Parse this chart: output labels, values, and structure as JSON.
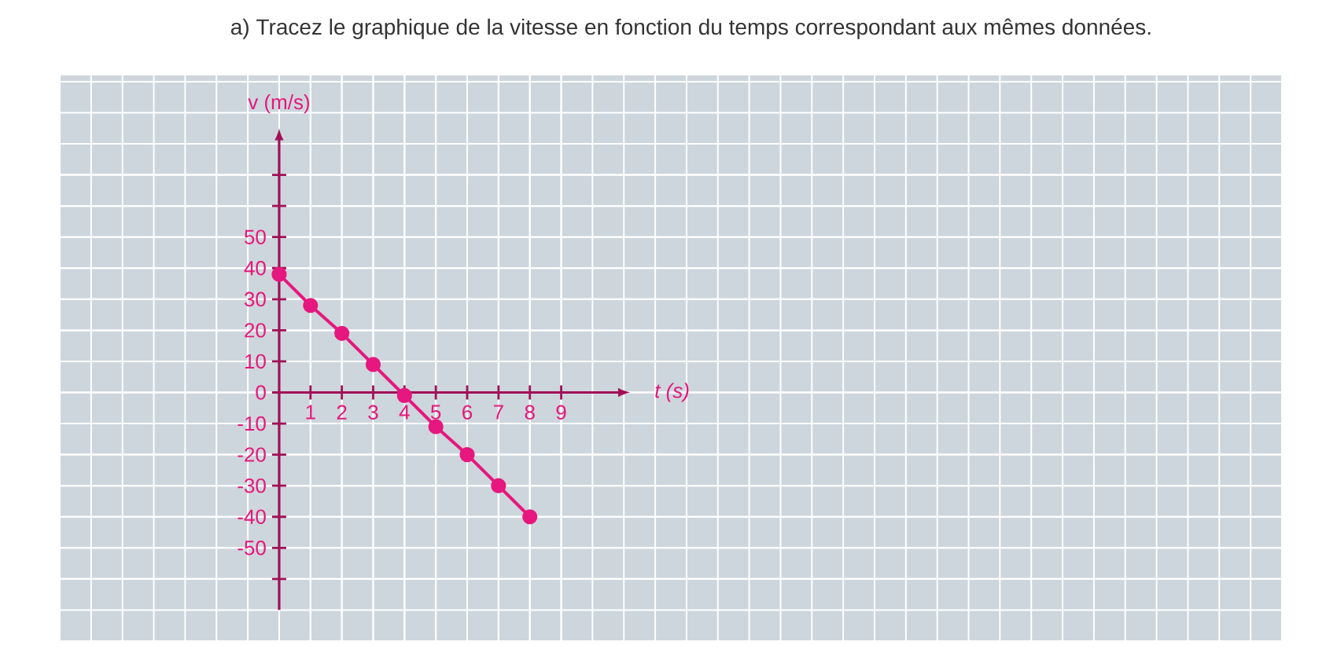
{
  "chart_data": {
    "type": "line",
    "title": "a) Tracez le graphique de la vitesse en fonction du temps correspondant aux mêmes données.",
    "xlabel": "t (s)",
    "ylabel": "v (m/s)",
    "x": [
      0,
      1,
      2,
      3,
      4,
      5,
      6,
      7,
      8
    ],
    "series": [
      {
        "color": "#e6177e",
        "values": [
          38,
          28,
          19,
          9,
          -1,
          -11,
          -20,
          -30,
          -40
        ]
      }
    ],
    "xlim": [
      -7,
      32
    ],
    "ylim": [
      -80,
      102
    ],
    "xticks": [
      1,
      2,
      3,
      4,
      5,
      6,
      7,
      8,
      9
    ],
    "yticks": [
      -50,
      -40,
      -30,
      -20,
      -10,
      0,
      10,
      20,
      30,
      40,
      50,
      {
        "value": -60,
        "label": null
      },
      {
        "value": 60,
        "label": null
      },
      {
        "value": 70,
        "label": null
      }
    ],
    "grid": true,
    "marker": "circle",
    "line_style": "solid"
  }
}
